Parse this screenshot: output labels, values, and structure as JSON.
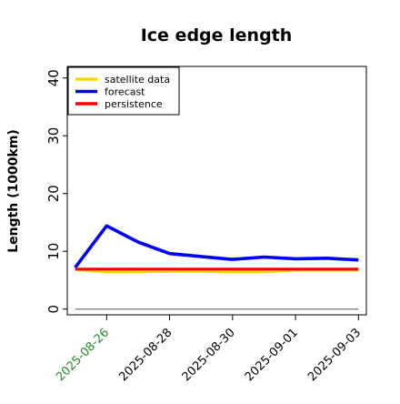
{
  "chart_data": {
    "type": "line",
    "title": "Ice edge length",
    "xlabel": "",
    "ylabel": "Length (1000km)",
    "ylim": [
      -1,
      42
    ],
    "xlim": [
      "2025-08-24T18:00",
      "2025-09-03T06:00"
    ],
    "yticks": [
      0,
      10,
      20,
      30,
      40
    ],
    "yticklabels": [
      "0",
      "10",
      "20",
      "30",
      "40"
    ],
    "xticks": [
      "2025-08-26",
      "2025-08-28",
      "2025-08-30",
      "2025-09-01",
      "2025-09-03"
    ],
    "xticklabels": [
      "2025-08-26",
      "2025-08-28",
      "2025-08-30",
      "2025-09-01",
      "2025-09-03"
    ],
    "xtick_label_colors": [
      "#228b22",
      "#000000",
      "#000000",
      "#000000",
      "#000000"
    ],
    "grid": false,
    "legend_position": "top-left",
    "series": [
      {
        "name": "satellite data",
        "color": "#ffd700",
        "x": [
          "2025-08-25",
          "2025-08-26",
          "2025-08-27",
          "2025-08-28",
          "2025-08-29",
          "2025-08-30",
          "2025-08-31",
          "2025-09-01",
          "2025-09-02",
          "2025-09-03"
        ],
        "y": [
          6.9,
          6.5,
          6.5,
          6.6,
          6.6,
          6.5,
          6.5,
          6.8,
          6.8,
          6.8
        ]
      },
      {
        "name": "forecast",
        "color": "#0000ff",
        "x": [
          "2025-08-25",
          "2025-08-26",
          "2025-08-27",
          "2025-08-28",
          "2025-08-29",
          "2025-08-30",
          "2025-08-31",
          "2025-09-01",
          "2025-09-02",
          "2025-09-03"
        ],
        "y": [
          7.2,
          14.4,
          11.6,
          9.6,
          9.1,
          8.6,
          9.0,
          8.7,
          8.8,
          8.5
        ]
      },
      {
        "name": "persistence",
        "color": "#ff0000",
        "x": [
          "2025-08-25",
          "2025-08-26",
          "2025-08-27",
          "2025-08-28",
          "2025-08-29",
          "2025-08-30",
          "2025-08-31",
          "2025-09-01",
          "2025-09-02",
          "2025-09-03"
        ],
        "y": [
          6.9,
          6.9,
          6.9,
          6.9,
          6.9,
          6.9,
          6.9,
          6.9,
          6.9,
          6.9
        ]
      }
    ],
    "reference_lines": [
      {
        "color": "#808080",
        "x": [
          "2025-08-25",
          "2025-09-03"
        ],
        "y": [
          0,
          0
        ]
      }
    ]
  }
}
